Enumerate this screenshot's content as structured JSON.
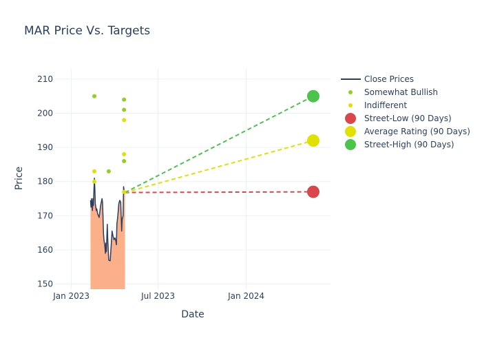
{
  "chart_data": {
    "type": "line",
    "title": "MAR Price Vs. Targets",
    "xlabel": "Date",
    "ylabel": "Price",
    "ylim": [
      148.5,
      213
    ],
    "xlim": [
      "2022-11-28",
      "2024-06-25"
    ],
    "x_ticks": [
      {
        "date": "2023-01-01",
        "label": "Jan 2023"
      },
      {
        "date": "2023-07-01",
        "label": "Jul 2023"
      },
      {
        "date": "2024-01-01",
        "label": "Jan 2024"
      }
    ],
    "y_ticks": [
      150,
      160,
      170,
      180,
      190,
      200,
      210
    ],
    "grid": true,
    "legend_position": "top-right",
    "colors": {
      "close": "#2a3f5f",
      "close_fill": "#fbb08a",
      "somewhat_bullish": "#8fd11f",
      "indifferent": "#e1e100",
      "street_low": "#d9474b",
      "average": "#e1e100",
      "street_high": "#4bc44b"
    },
    "legend": [
      {
        "key": "close",
        "label": "Close Prices",
        "kind": "line"
      },
      {
        "key": "somewhat_bullish",
        "label": "Somewhat Bullish",
        "kind": "dot"
      },
      {
        "key": "indifferent",
        "label": "Indifferent",
        "kind": "dot"
      },
      {
        "key": "street_low",
        "label": "Street-Low (90 Days)",
        "kind": "bigdot"
      },
      {
        "key": "average",
        "label": "Average Rating (90 Days)",
        "kind": "bigdot"
      },
      {
        "key": "street_high",
        "label": "Street-High (90 Days)",
        "kind": "bigdot"
      }
    ],
    "close_prices": [
      {
        "x": "2023-02-10",
        "y": 174.5
      },
      {
        "x": "2023-02-11",
        "y": 172.5
      },
      {
        "x": "2023-02-12",
        "y": 175.0
      },
      {
        "x": "2023-02-13",
        "y": 173.5
      },
      {
        "x": "2023-02-14",
        "y": 171.5
      },
      {
        "x": "2023-02-15",
        "y": 175.0
      },
      {
        "x": "2023-02-16",
        "y": 173.0
      },
      {
        "x": "2023-02-18",
        "y": 181.0
      },
      {
        "x": "2023-02-19",
        "y": 178.0
      },
      {
        "x": "2023-02-20",
        "y": 173.5
      },
      {
        "x": "2023-02-22",
        "y": 171.5
      },
      {
        "x": "2023-02-23",
        "y": 172.0
      },
      {
        "x": "2023-02-25",
        "y": 170.5
      },
      {
        "x": "2023-02-28",
        "y": 169.5
      },
      {
        "x": "2023-03-03",
        "y": 173.0
      },
      {
        "x": "2023-03-06",
        "y": 175.0
      },
      {
        "x": "2023-03-07",
        "y": 174.0
      },
      {
        "x": "2023-03-08",
        "y": 170.0
      },
      {
        "x": "2023-03-09",
        "y": 165.0
      },
      {
        "x": "2023-03-10",
        "y": 163.0
      },
      {
        "x": "2023-03-12",
        "y": 161.0
      },
      {
        "x": "2023-03-13",
        "y": 159.0
      },
      {
        "x": "2023-03-14",
        "y": 162.0
      },
      {
        "x": "2023-03-15",
        "y": 159.5
      },
      {
        "x": "2023-03-17",
        "y": 167.5
      },
      {
        "x": "2023-03-18",
        "y": 163.0
      },
      {
        "x": "2023-03-20",
        "y": 157.0
      },
      {
        "x": "2023-03-23",
        "y": 156.8
      },
      {
        "x": "2023-03-25",
        "y": 161.0
      },
      {
        "x": "2023-03-27",
        "y": 165.5
      },
      {
        "x": "2023-03-29",
        "y": 164.0
      },
      {
        "x": "2023-03-31",
        "y": 163.0
      },
      {
        "x": "2023-04-02",
        "y": 163.5
      },
      {
        "x": "2023-04-04",
        "y": 162.5
      },
      {
        "x": "2023-04-05",
        "y": 161.5
      },
      {
        "x": "2023-04-06",
        "y": 167.5
      },
      {
        "x": "2023-04-08",
        "y": 170.0
      },
      {
        "x": "2023-04-10",
        "y": 173.5
      },
      {
        "x": "2023-04-12",
        "y": 174.5
      },
      {
        "x": "2023-04-14",
        "y": 174.0
      },
      {
        "x": "2023-04-15",
        "y": 170.0
      },
      {
        "x": "2023-04-16",
        "y": 165.5
      },
      {
        "x": "2023-04-17",
        "y": 169.0
      },
      {
        "x": "2023-04-18",
        "y": 169.5
      },
      {
        "x": "2023-04-19",
        "y": 170.0
      },
      {
        "x": "2023-04-20",
        "y": 178.5
      },
      {
        "x": "2023-04-21",
        "y": 177.5
      },
      {
        "x": "2023-04-23",
        "y": 176.8
      }
    ],
    "analyst_points": {
      "somewhat_bullish": [
        {
          "x": "2023-02-18",
          "y": 205
        },
        {
          "x": "2023-03-20",
          "y": 183
        },
        {
          "x": "2023-04-21",
          "y": 204
        },
        {
          "x": "2023-04-21",
          "y": 201
        },
        {
          "x": "2023-04-21",
          "y": 186
        }
      ],
      "indifferent": [
        {
          "x": "2023-02-18",
          "y": 183
        },
        {
          "x": "2023-02-18",
          "y": 180
        },
        {
          "x": "2023-04-21",
          "y": 198
        },
        {
          "x": "2023-04-21",
          "y": 188
        },
        {
          "x": "2023-04-21",
          "y": 177
        }
      ]
    },
    "targets": {
      "start": {
        "x": "2023-04-23",
        "y": 176.8
      },
      "end_date": "2024-05-20",
      "street_low": 177,
      "average": 192,
      "street_high": 205
    }
  }
}
